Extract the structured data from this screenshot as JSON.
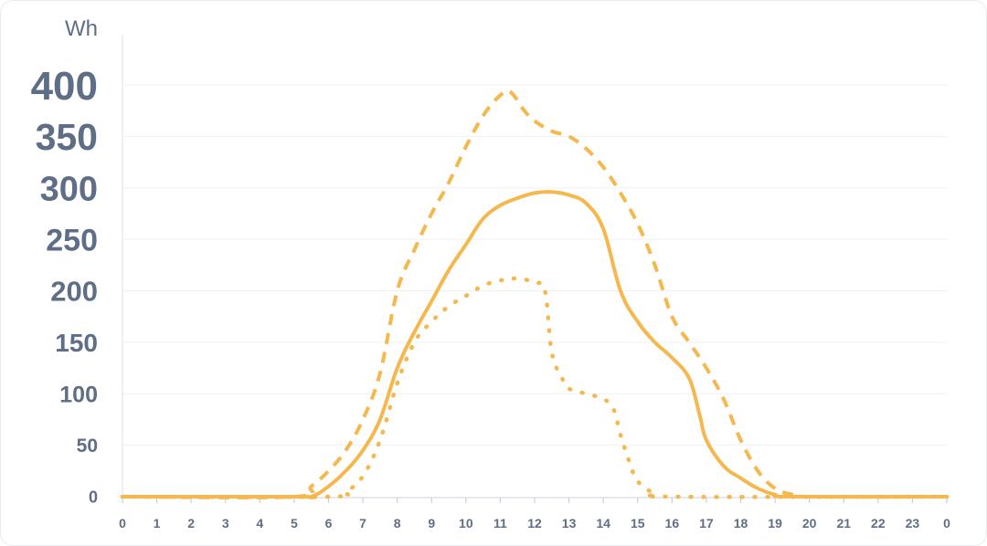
{
  "chart_data": {
    "type": "line",
    "unit_label": "Wh",
    "x_ticks": [
      "0",
      "1",
      "2",
      "3",
      "4",
      "5",
      "6",
      "7",
      "8",
      "9",
      "10",
      "11",
      "12",
      "13",
      "14",
      "15",
      "16",
      "17",
      "18",
      "19",
      "20",
      "21",
      "22",
      "23",
      "0"
    ],
    "y_ticks": [
      "400",
      "350",
      "300",
      "250",
      "200",
      "150",
      "100",
      "50",
      "0"
    ],
    "xlim": [
      0,
      24
    ],
    "ylim": [
      0,
      400
    ],
    "grid": true,
    "color": "#f5b84f",
    "series": [
      {
        "style": "solid",
        "points": [
          [
            0,
            0
          ],
          [
            5,
            0
          ],
          [
            5.5,
            0
          ],
          [
            6,
            10
          ],
          [
            6.5,
            25
          ],
          [
            7,
            45
          ],
          [
            7.5,
            75
          ],
          [
            8,
            125
          ],
          [
            8.5,
            160
          ],
          [
            9,
            190
          ],
          [
            9.5,
            220
          ],
          [
            10,
            245
          ],
          [
            10.5,
            270
          ],
          [
            11,
            283
          ],
          [
            11.5,
            290
          ],
          [
            12,
            295
          ],
          [
            12.5,
            296
          ],
          [
            13,
            293
          ],
          [
            13.5,
            285
          ],
          [
            14,
            260
          ],
          [
            14.5,
            200
          ],
          [
            15,
            170
          ],
          [
            15.5,
            150
          ],
          [
            16,
            135
          ],
          [
            16.5,
            115
          ],
          [
            16.8,
            80
          ],
          [
            17,
            55
          ],
          [
            17.5,
            30
          ],
          [
            18,
            18
          ],
          [
            18.5,
            8
          ],
          [
            19,
            2
          ],
          [
            19.5,
            0
          ],
          [
            24,
            0
          ]
        ]
      },
      {
        "style": "dashed",
        "points": [
          [
            0,
            0
          ],
          [
            5,
            0
          ],
          [
            5.5,
            10
          ],
          [
            6,
            25
          ],
          [
            6.5,
            45
          ],
          [
            7,
            75
          ],
          [
            7.5,
            120
          ],
          [
            8,
            200
          ],
          [
            8.5,
            240
          ],
          [
            9,
            275
          ],
          [
            9.5,
            305
          ],
          [
            10,
            340
          ],
          [
            10.5,
            370
          ],
          [
            11,
            390
          ],
          [
            11.3,
            393
          ],
          [
            11.7,
            375
          ],
          [
            12,
            365
          ],
          [
            12.5,
            355
          ],
          [
            13,
            350
          ],
          [
            13.5,
            338
          ],
          [
            14,
            320
          ],
          [
            14.5,
            295
          ],
          [
            15,
            265
          ],
          [
            15.5,
            225
          ],
          [
            16,
            175
          ],
          [
            16.5,
            150
          ],
          [
            17,
            125
          ],
          [
            17.5,
            95
          ],
          [
            18,
            55
          ],
          [
            18.5,
            25
          ],
          [
            19,
            8
          ],
          [
            19.5,
            2
          ],
          [
            20,
            0
          ],
          [
            24,
            0
          ]
        ]
      },
      {
        "style": "dotted",
        "points": [
          [
            0,
            0
          ],
          [
            6,
            0
          ],
          [
            6.5,
            5
          ],
          [
            7,
            20
          ],
          [
            7.5,
            55
          ],
          [
            8,
            110
          ],
          [
            8.5,
            150
          ],
          [
            9,
            170
          ],
          [
            9.5,
            185
          ],
          [
            10,
            195
          ],
          [
            10.5,
            205
          ],
          [
            11,
            210
          ],
          [
            11.5,
            212
          ],
          [
            12,
            208
          ],
          [
            12.3,
            200
          ],
          [
            12.5,
            140
          ],
          [
            12.8,
            115
          ],
          [
            13,
            105
          ],
          [
            13.5,
            100
          ],
          [
            14,
            95
          ],
          [
            14.3,
            85
          ],
          [
            14.5,
            60
          ],
          [
            14.8,
            30
          ],
          [
            15,
            15
          ],
          [
            15.5,
            3
          ],
          [
            16,
            0
          ],
          [
            24,
            0
          ]
        ]
      }
    ]
  }
}
